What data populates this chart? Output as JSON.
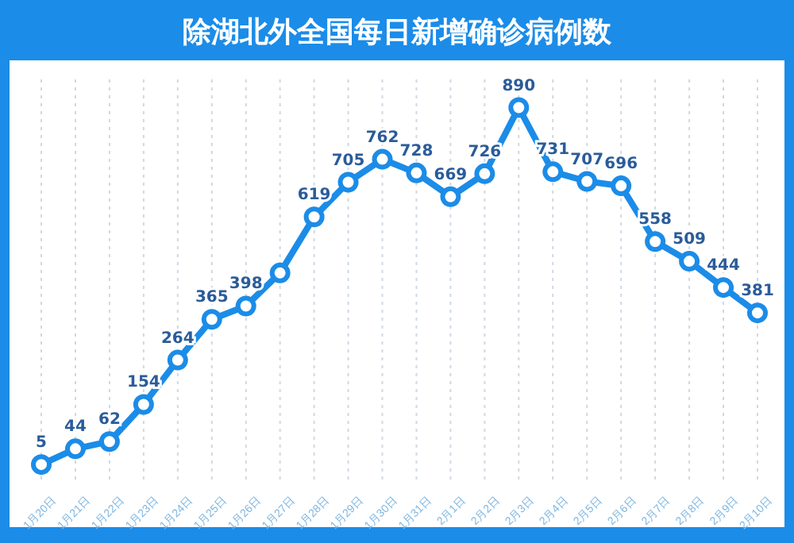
{
  "chart_data": {
    "type": "line",
    "title": "除湖北外全国每日新增确诊病例数",
    "categories": [
      "1月20日",
      "1月21日",
      "1月22日",
      "1月23日",
      "1月24日",
      "1月25日",
      "1月26日",
      "1月27日",
      "1月28日",
      "1月29日",
      "1月30日",
      "1月31日",
      "2月1日",
      "2月2日",
      "2月3日",
      "2月4日",
      "2月5日",
      "2月6日",
      "2月7日",
      "2月8日",
      "2月9日",
      "2月10日"
    ],
    "series": [
      {
        "color": "#1b8ce8",
        "values": [
          5,
          44,
          62,
          154,
          264,
          365,
          398,
          480,
          619,
          705,
          762,
          728,
          669,
          726,
          890,
          731,
          707,
          696,
          558,
          509,
          444,
          381
        ],
        "value_labels": [
          "5",
          "44",
          "62",
          "154",
          "264",
          "365",
          "398",
          null,
          "619",
          "705",
          "762",
          "728",
          "669",
          "726",
          "890",
          "731",
          "707",
          "696",
          "558",
          "509",
          "444",
          "381"
        ]
      }
    ],
    "ylim": [
      -40,
      960
    ],
    "grid": "x",
    "marker": "circle",
    "line_style": "solid",
    "tick_labels": "x"
  }
}
